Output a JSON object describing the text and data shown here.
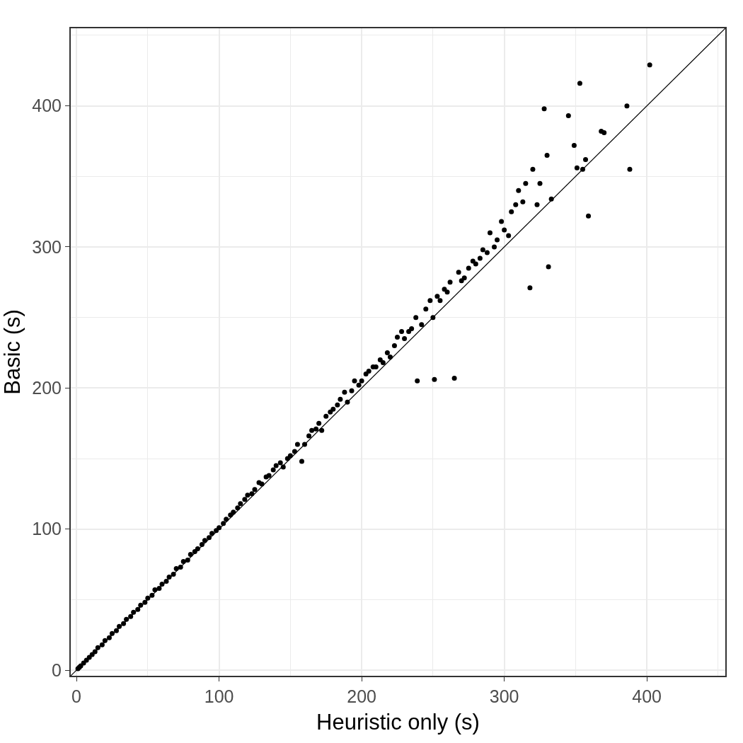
{
  "chart_data": {
    "type": "scatter",
    "xlabel": "Heuristic only (s)",
    "ylabel": "Basic (s)",
    "xlim": [
      -4,
      455
    ],
    "ylim": [
      -4,
      455
    ],
    "xticks": [
      0,
      100,
      200,
      300,
      400
    ],
    "yticks": [
      0,
      100,
      200,
      300,
      400
    ],
    "grid": true,
    "marker": "circle",
    "legend": false,
    "series": [
      {
        "color": "#000000",
        "x": [
          1,
          2,
          3,
          5,
          7,
          9,
          11,
          13,
          15,
          18,
          20,
          23,
          25,
          28,
          30,
          33,
          35,
          38,
          40,
          43,
          45,
          48,
          50,
          53,
          55,
          58,
          60,
          63,
          65,
          68,
          70,
          73,
          75,
          78,
          80,
          83,
          85,
          88,
          90,
          93,
          95,
          98,
          100,
          103,
          105,
          108,
          110,
          113,
          115,
          118,
          120,
          123,
          125,
          128,
          130,
          133,
          135,
          138,
          140,
          143,
          145,
          148,
          150,
          153,
          155,
          158,
          160,
          163,
          165,
          168,
          170,
          172,
          175,
          178,
          180,
          183,
          185,
          188,
          190,
          193,
          195,
          198,
          200,
          203,
          205,
          208,
          210,
          213,
          215,
          218,
          220,
          223,
          225,
          228,
          230,
          233,
          235,
          238,
          239,
          242,
          245,
          248,
          250,
          251,
          253,
          255,
          258,
          260,
          262,
          265,
          268,
          270,
          272,
          275,
          278,
          280,
          283,
          285,
          288,
          290,
          293,
          295,
          298,
          300,
          303,
          305,
          308,
          310,
          313,
          315,
          318,
          320,
          323,
          325,
          328,
          330,
          331,
          333,
          345,
          349,
          351,
          353,
          355,
          357,
          359,
          368,
          370,
          386,
          388,
          402
        ],
        "values": [
          1,
          2,
          3,
          5,
          7,
          9,
          11,
          13,
          16,
          18,
          21,
          23,
          26,
          28,
          31,
          33,
          36,
          38,
          41,
          43,
          46,
          48,
          51,
          53,
          57,
          58,
          61,
          63,
          66,
          68,
          72,
          73,
          77,
          78,
          82,
          84,
          86,
          89,
          92,
          94,
          97,
          99,
          101,
          104,
          107,
          110,
          112,
          115,
          118,
          121,
          124,
          125,
          128,
          133,
          132,
          137,
          138,
          142,
          145,
          147,
          144,
          150,
          152,
          155,
          160,
          148,
          160,
          166,
          170,
          171,
          175,
          170,
          180,
          183,
          185,
          188,
          192,
          197,
          190,
          198,
          205,
          202,
          205,
          210,
          212,
          215,
          215,
          220,
          218,
          225,
          222,
          230,
          236,
          240,
          235,
          240,
          242,
          250,
          205,
          245,
          256,
          262,
          250,
          206,
          265,
          262,
          270,
          268,
          275,
          207,
          282,
          276,
          278,
          285,
          290,
          288,
          292,
          298,
          296,
          310,
          300,
          305,
          318,
          312,
          308,
          325,
          330,
          340,
          332,
          345,
          271,
          355,
          330,
          345,
          398,
          365,
          286,
          334,
          393,
          372,
          356,
          416,
          355,
          362,
          322,
          382,
          381,
          400,
          355,
          429
        ]
      },
      {
        "type": "line",
        "color": "#000000",
        "x": [
          -4,
          455
        ],
        "values": [
          -4,
          455
        ],
        "marker": "none"
      }
    ]
  }
}
